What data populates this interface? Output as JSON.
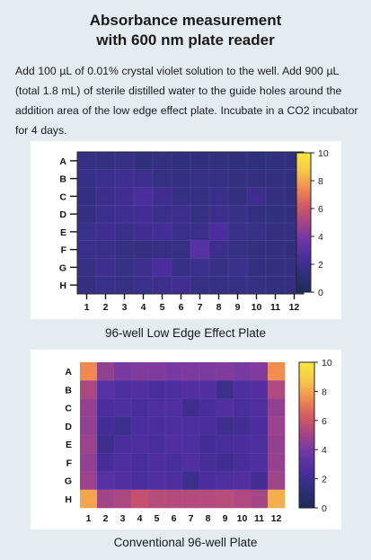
{
  "title_line1": "Absorbance measurement",
  "title_line2": "with 600 nm plate reader",
  "description": "Add 100 µL of 0.01% crystal violet solution to the well.  Add 900 µL (total 1.8 mL) of sterile distilled water to the guide holes around the addition area of the low edge effect plate. Incubate in a CO2 incubator for 4 days.",
  "chart_data": [
    {
      "type": "heatmap",
      "caption": "96-well Low Edge Effect Plate",
      "rows": [
        "A",
        "B",
        "C",
        "D",
        "E",
        "F",
        "G",
        "H"
      ],
      "columns": [
        "1",
        "2",
        "3",
        "4",
        "5",
        "6",
        "7",
        "8",
        "9",
        "10",
        "11",
        "12"
      ],
      "colorbar": {
        "min": 0,
        "max": 10,
        "ticks": [
          0,
          2,
          4,
          6,
          8,
          10
        ]
      },
      "colormap": [
        "#1f2a55",
        "#2e2f7a",
        "#4a2e9e",
        "#6d36a8",
        "#a34488",
        "#d45a62",
        "#f08d50",
        "#f7c84a",
        "#f5e93c"
      ],
      "values": [
        [
          1.6,
          1.5,
          1.6,
          1.4,
          1.5,
          1.4,
          1.4,
          1.4,
          1.4,
          1.3,
          1.4,
          1.4
        ],
        [
          1.7,
          1.8,
          2.0,
          1.9,
          1.6,
          1.5,
          1.6,
          1.6,
          1.5,
          1.5,
          1.5,
          1.4
        ],
        [
          1.5,
          1.9,
          2.1,
          2.5,
          2.0,
          1.6,
          1.6,
          1.8,
          1.5,
          1.9,
          1.5,
          1.4
        ],
        [
          1.5,
          1.8,
          2.0,
          2.2,
          1.8,
          1.9,
          1.6,
          1.9,
          1.7,
          1.5,
          1.4,
          1.4
        ],
        [
          1.8,
          2.0,
          1.8,
          2.0,
          2.2,
          1.8,
          1.8,
          2.5,
          1.8,
          1.7,
          1.5,
          1.5
        ],
        [
          1.8,
          1.8,
          1.6,
          1.5,
          1.6,
          1.6,
          3.0,
          1.9,
          1.6,
          1.5,
          1.5,
          1.4
        ],
        [
          1.6,
          1.9,
          1.7,
          1.9,
          2.5,
          1.6,
          1.8,
          1.6,
          1.8,
          1.5,
          1.5,
          1.5
        ],
        [
          1.5,
          1.8,
          1.7,
          1.8,
          1.9,
          2.1,
          1.6,
          1.6,
          1.7,
          1.6,
          1.5,
          1.5
        ]
      ]
    },
    {
      "type": "heatmap",
      "caption": "Conventional 96-well Plate",
      "rows": [
        "A",
        "B",
        "C",
        "D",
        "E",
        "F",
        "G",
        "H"
      ],
      "columns": [
        "1",
        "2",
        "3",
        "4",
        "5",
        "6",
        "7",
        "8",
        "9",
        "10",
        "11",
        "12"
      ],
      "colorbar": {
        "min": 0,
        "max": 10,
        "ticks": [
          0,
          2,
          4,
          6,
          8,
          10
        ]
      },
      "colormap": [
        "#1f2a55",
        "#2e2f7a",
        "#4a2e9e",
        "#6d36a8",
        "#a34488",
        "#d45a62",
        "#f08d50",
        "#f7c84a",
        "#f5e93c"
      ],
      "values": [
        [
          7.4,
          4.6,
          4.0,
          4.2,
          4.2,
          4.0,
          4.1,
          4.1,
          4.2,
          4.0,
          4.2,
          7.5
        ],
        [
          5.2,
          3.0,
          2.6,
          2.8,
          2.5,
          2.6,
          2.8,
          2.8,
          1.8,
          2.6,
          2.8,
          5.3
        ],
        [
          4.7,
          2.5,
          2.6,
          2.4,
          2.6,
          2.7,
          1.9,
          2.4,
          2.8,
          2.5,
          2.7,
          4.6
        ],
        [
          4.6,
          2.2,
          1.8,
          2.5,
          2.5,
          2.6,
          2.6,
          2.5,
          2.0,
          2.2,
          2.5,
          4.8
        ],
        [
          4.8,
          1.9,
          2.5,
          2.6,
          2.4,
          2.8,
          2.6,
          2.2,
          2.4,
          2.5,
          2.6,
          4.6
        ],
        [
          4.6,
          2.3,
          2.6,
          2.4,
          2.6,
          2.4,
          2.7,
          2.3,
          2.0,
          2.4,
          2.6,
          4.7
        ],
        [
          4.8,
          2.9,
          2.8,
          2.5,
          2.7,
          2.6,
          1.8,
          2.5,
          2.6,
          2.8,
          2.2,
          4.9
        ],
        [
          8.0,
          5.0,
          5.2,
          5.8,
          5.5,
          5.4,
          5.4,
          5.4,
          5.5,
          5.3,
          5.1,
          8.2
        ]
      ]
    }
  ]
}
